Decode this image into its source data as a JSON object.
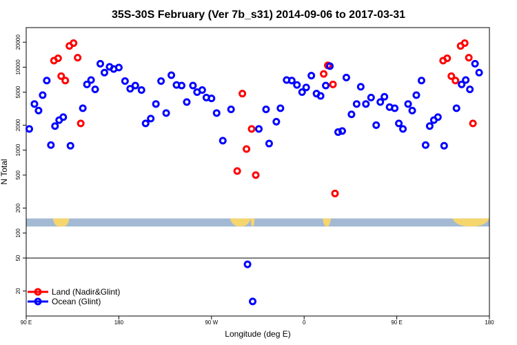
{
  "chart_data": {
    "type": "scatter",
    "title": "35S-30S February (Ver 7b_s31)   2014-09-06 to 2017-03-31",
    "xlabel": "Longitude (deg E)",
    "ylabel": "N Total",
    "xscale": "linear",
    "yscale": "log",
    "xlim": [
      90,
      540
    ],
    "ylim": [
      10,
      30000
    ],
    "x_ticks": [
      {
        "value": 90,
        "label": "90 E"
      },
      {
        "value": 180,
        "label": "180"
      },
      {
        "value": 270,
        "label": "90 W"
      },
      {
        "value": 360,
        "label": "0"
      },
      {
        "value": 450,
        "label": "90 E"
      },
      {
        "value": 540,
        "label": "180"
      }
    ],
    "y_ticks": [
      20,
      50,
      100,
      200,
      500,
      1000,
      2000,
      5000,
      10000,
      20000
    ],
    "grid": false,
    "reference_line": 50,
    "land_ocean_strip": {
      "range": [
        120,
        150
      ],
      "ocean_color": "#a3b9d4",
      "land_color": "#f5d56e",
      "land_segments": [
        [
          116,
          128
        ],
        [
          119,
          132
        ],
        [
          288,
          308
        ],
        [
          308,
          312
        ],
        [
          378,
          386
        ],
        [
          504,
          540
        ]
      ]
    },
    "legend_position": "bottom-left",
    "series": [
      {
        "name": "Land (Nadir&Glint)",
        "color": "#ff0000",
        "points": [
          [
            117,
            12000
          ],
          [
            121,
            12800
          ],
          [
            124,
            7800
          ],
          [
            128,
            6900
          ],
          [
            132,
            18000
          ],
          [
            136,
            19500
          ],
          [
            140,
            13000
          ],
          [
            143,
            2100
          ],
          [
            295,
            560
          ],
          [
            300,
            4800
          ],
          [
            304,
            1030
          ],
          [
            309,
            1800
          ],
          [
            313,
            500
          ],
          [
            379,
            8300
          ],
          [
            383,
            10500
          ],
          [
            388,
            6200
          ],
          [
            390,
            300
          ],
          [
            495,
            12000
          ],
          [
            499,
            12800
          ],
          [
            503,
            7800
          ],
          [
            507,
            6900
          ],
          [
            512,
            18000
          ],
          [
            516,
            19500
          ],
          [
            520,
            13000
          ],
          [
            524,
            2100
          ]
        ]
      },
      {
        "name": "Ocean (Glint)",
        "color": "#0000ff",
        "points": [
          [
            93,
            1800
          ],
          [
            98,
            3600
          ],
          [
            102,
            3000
          ],
          [
            106,
            4600
          ],
          [
            110,
            6900
          ],
          [
            114,
            1150
          ],
          [
            118,
            1950
          ],
          [
            122,
            2300
          ],
          [
            126,
            2500
          ],
          [
            133,
            1130
          ],
          [
            145,
            3200
          ],
          [
            149,
            6200
          ],
          [
            153,
            7000
          ],
          [
            157,
            5400
          ],
          [
            162,
            11000
          ],
          [
            166,
            8600
          ],
          [
            171,
            10100
          ],
          [
            175,
            9500
          ],
          [
            180,
            9900
          ],
          [
            186,
            6800
          ],
          [
            191,
            5500
          ],
          [
            196,
            6000
          ],
          [
            202,
            5300
          ],
          [
            206,
            2100
          ],
          [
            211,
            2400
          ],
          [
            216,
            3600
          ],
          [
            221,
            6800
          ],
          [
            226,
            2800
          ],
          [
            231,
            8000
          ],
          [
            236,
            6100
          ],
          [
            241,
            6000
          ],
          [
            246,
            3800
          ],
          [
            252,
            6000
          ],
          [
            256,
            5000
          ],
          [
            261,
            5300
          ],
          [
            265,
            4300
          ],
          [
            270,
            4200
          ],
          [
            275,
            2800
          ],
          [
            281,
            1300
          ],
          [
            289,
            3100
          ],
          [
            305,
            42
          ],
          [
            310,
            15
          ],
          [
            316,
            1800
          ],
          [
            323,
            3100
          ],
          [
            326,
            1200
          ],
          [
            333,
            2200
          ],
          [
            337,
            3200
          ],
          [
            343,
            7000
          ],
          [
            348,
            6900
          ],
          [
            353,
            6100
          ],
          [
            358,
            5000
          ],
          [
            362,
            5700
          ],
          [
            367,
            7900
          ],
          [
            372,
            4800
          ],
          [
            376,
            4500
          ],
          [
            381,
            6000
          ],
          [
            385,
            10300
          ],
          [
            393,
            1650
          ],
          [
            397,
            1700
          ],
          [
            401,
            7500
          ],
          [
            406,
            2700
          ],
          [
            411,
            3600
          ],
          [
            415,
            5800
          ],
          [
            420,
            3600
          ],
          [
            425,
            4300
          ],
          [
            430,
            2000
          ],
          [
            434,
            3800
          ],
          [
            438,
            4400
          ],
          [
            443,
            3300
          ],
          [
            448,
            3200
          ],
          [
            452,
            2100
          ],
          [
            456,
            1800
          ],
          [
            461,
            3600
          ],
          [
            465,
            3000
          ],
          [
            469,
            4600
          ],
          [
            474,
            6900
          ],
          [
            478,
            1150
          ],
          [
            482,
            1950
          ],
          [
            486,
            2300
          ],
          [
            490,
            2500
          ],
          [
            496,
            1130
          ],
          [
            508,
            3200
          ],
          [
            513,
            6200
          ],
          [
            517,
            7000
          ],
          [
            521,
            5400
          ],
          [
            526,
            11000
          ],
          [
            530,
            8600
          ]
        ]
      }
    ]
  }
}
